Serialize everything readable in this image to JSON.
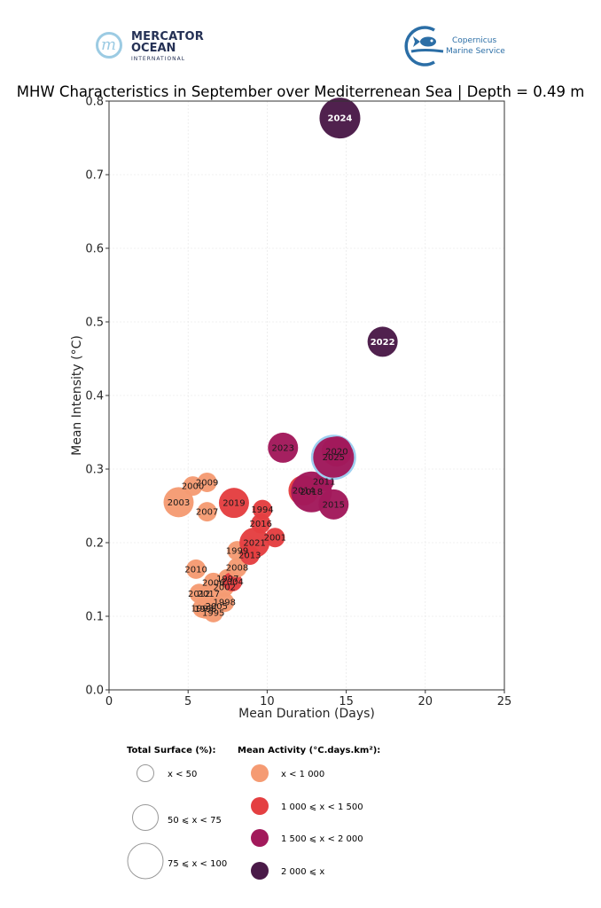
{
  "logos": {
    "left": {
      "name": "MERCATOR OCEAN INTERNATIONAL",
      "line1": "MERCATOR",
      "line2": "OCEAN",
      "line3": "INTERNATIONAL",
      "mark": "m",
      "color": "#253155",
      "accent": "#9ccbe3"
    },
    "right": {
      "name": "Copernicus Marine Service",
      "line1": "Copernicus",
      "line2": "Marine Service",
      "color": "#2b6ea6"
    }
  },
  "chart_data": {
    "type": "scatter",
    "title": "MHW Characteristics in September over Mediterrenean Sea | Depth = 0.49 m",
    "xlabel": "Mean Duration (Days)",
    "ylabel": "Mean Intensity (°C)",
    "xlim": [
      0,
      25
    ],
    "ylim": [
      0,
      0.8
    ],
    "xticks": [
      0,
      5,
      10,
      15,
      20,
      25
    ],
    "xtick_labels": [
      "0",
      "5",
      "10",
      "15",
      "20",
      "25"
    ],
    "yticks": [
      0.0,
      0.1,
      0.2,
      0.3,
      0.4,
      0.5,
      0.6,
      0.7,
      0.8
    ],
    "ytick_labels": [
      "0.0",
      "0.1",
      "0.2",
      "0.3",
      "0.4",
      "0.5",
      "0.6",
      "0.7",
      "0.8"
    ],
    "grid": true,
    "highlight_year": "2025",
    "highlight_color": "#9ecff0",
    "activity_classes": [
      {
        "key": "a1",
        "label": "x < 1 000",
        "color": "#f59b73"
      },
      {
        "key": "a2",
        "label": "1 000 ⩽ x < 1 500",
        "color": "#e43f41"
      },
      {
        "key": "a3",
        "label": "1 500 ⩽ x < 2 000",
        "color": "#a2195b"
      },
      {
        "key": "a4",
        "label": "2 000 ⩽ x",
        "color": "#4a1a48"
      }
    ],
    "surface_classes": [
      {
        "key": "s1",
        "label": "x < 50"
      },
      {
        "key": "s2",
        "label": "50 ⩽ x < 75"
      },
      {
        "key": "s3",
        "label": "75 ⩽ x < 100"
      }
    ],
    "points": [
      {
        "year": "1993",
        "duration": 5.9,
        "intensity": 0.111,
        "activity": "a1",
        "surface": "s1"
      },
      {
        "year": "1996",
        "duration": 6.1,
        "intensity": 0.11,
        "activity": "a1",
        "surface": "s1"
      },
      {
        "year": "1995",
        "duration": 6.6,
        "intensity": 0.105,
        "activity": "a1",
        "surface": "s1"
      },
      {
        "year": "2005",
        "duration": 6.8,
        "intensity": 0.114,
        "activity": "a1",
        "surface": "s1"
      },
      {
        "year": "1998",
        "duration": 7.3,
        "intensity": 0.119,
        "activity": "a1",
        "surface": "s1"
      },
      {
        "year": "2012",
        "duration": 5.7,
        "intensity": 0.131,
        "activity": "a1",
        "surface": "s1"
      },
      {
        "year": "2017",
        "duration": 6.3,
        "intensity": 0.131,
        "activity": "a1",
        "surface": "s1"
      },
      {
        "year": "2006",
        "duration": 6.6,
        "intensity": 0.146,
        "activity": "a1",
        "surface": "s1"
      },
      {
        "year": "2002",
        "duration": 7.3,
        "intensity": 0.14,
        "activity": "a1",
        "surface": "s1"
      },
      {
        "year": "1997",
        "duration": 7.5,
        "intensity": 0.151,
        "activity": "a1",
        "surface": "s1"
      },
      {
        "year": "2004",
        "duration": 7.8,
        "intensity": 0.147,
        "activity": "a2",
        "surface": "s1"
      },
      {
        "year": "2010",
        "duration": 5.5,
        "intensity": 0.164,
        "activity": "a1",
        "surface": "s1"
      },
      {
        "year": "2008",
        "duration": 8.1,
        "intensity": 0.166,
        "activity": "a1",
        "surface": "s1"
      },
      {
        "year": "1999",
        "duration": 8.1,
        "intensity": 0.189,
        "activity": "a1",
        "surface": "s1"
      },
      {
        "year": "2013",
        "duration": 8.9,
        "intensity": 0.183,
        "activity": "a2",
        "surface": "s1"
      },
      {
        "year": "2021",
        "duration": 9.2,
        "intensity": 0.2,
        "activity": "a2",
        "surface": "s2"
      },
      {
        "year": "2001",
        "duration": 10.5,
        "intensity": 0.207,
        "activity": "a2",
        "surface": "s1"
      },
      {
        "year": "2016",
        "duration": 9.6,
        "intensity": 0.226,
        "activity": "a2",
        "surface": "s1"
      },
      {
        "year": "1994",
        "duration": 9.7,
        "intensity": 0.245,
        "activity": "a2",
        "surface": "s1"
      },
      {
        "year": "2007",
        "duration": 6.2,
        "intensity": 0.242,
        "activity": "a1",
        "surface": "s1"
      },
      {
        "year": "2003",
        "duration": 4.4,
        "intensity": 0.255,
        "activity": "a1",
        "surface": "s2"
      },
      {
        "year": "2000",
        "duration": 5.3,
        "intensity": 0.277,
        "activity": "a1",
        "surface": "s1"
      },
      {
        "year": "2009",
        "duration": 6.2,
        "intensity": 0.282,
        "activity": "a1",
        "surface": "s1"
      },
      {
        "year": "2019",
        "duration": 7.9,
        "intensity": 0.254,
        "activity": "a2",
        "surface": "s2"
      },
      {
        "year": "2014",
        "duration": 12.3,
        "intensity": 0.271,
        "activity": "a2",
        "surface": "s2"
      },
      {
        "year": "2018",
        "duration": 12.8,
        "intensity": 0.269,
        "activity": "a3",
        "surface": "s3"
      },
      {
        "year": "2011",
        "duration": 13.6,
        "intensity": 0.283,
        "activity": "a3",
        "surface": "s1"
      },
      {
        "year": "2015",
        "duration": 14.2,
        "intensity": 0.252,
        "activity": "a3",
        "surface": "s2"
      },
      {
        "year": "2023",
        "duration": 11.0,
        "intensity": 0.329,
        "activity": "a3",
        "surface": "s2"
      },
      {
        "year": "2025",
        "duration": 14.2,
        "intensity": 0.316,
        "activity": "a3",
        "surface": "s3"
      },
      {
        "year": "2020",
        "duration": 14.4,
        "intensity": 0.324,
        "activity": "a3",
        "surface": "s2"
      },
      {
        "year": "2022",
        "duration": 17.3,
        "intensity": 0.473,
        "activity": "a4",
        "surface": "s2"
      },
      {
        "year": "2024",
        "duration": 14.6,
        "intensity": 0.777,
        "activity": "a4",
        "surface": "s3"
      }
    ],
    "legend": {
      "surface_title": "Total Surface (%):",
      "activity_title": "Mean Activity (°C.days.km²):",
      "placement": "bottom"
    }
  }
}
